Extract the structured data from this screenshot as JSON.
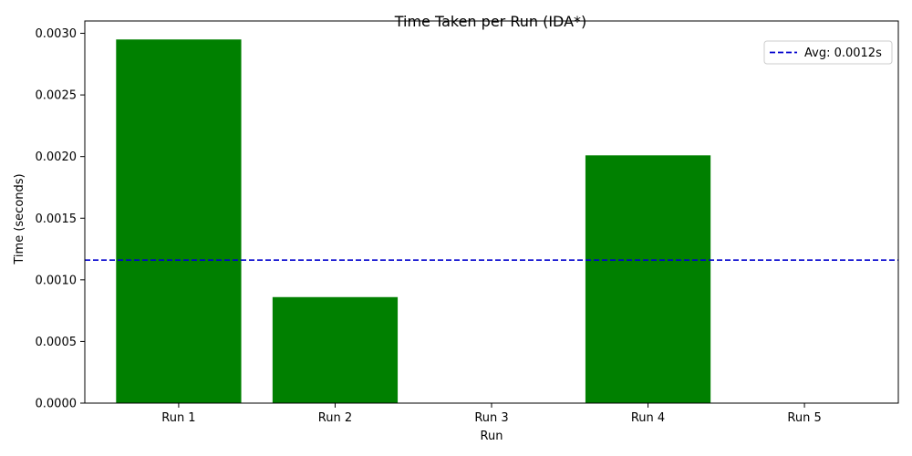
{
  "chart_data": {
    "type": "bar",
    "title": "Time Taken per Run (IDA*)",
    "xlabel": "Run",
    "ylabel": "Time (seconds)",
    "categories": [
      "Run 1",
      "Run 2",
      "Run 3",
      "Run 4",
      "Run 5"
    ],
    "values": [
      0.00295,
      0.00086,
      0.0,
      0.00201,
      0.0
    ],
    "ylim": [
      0,
      0.0031
    ],
    "yticks": [
      0.0,
      0.0005,
      0.001,
      0.0015,
      0.002,
      0.0025,
      0.003
    ],
    "ytick_labels": [
      "0.0000",
      "0.0005",
      "0.0010",
      "0.0015",
      "0.0020",
      "0.0025",
      "0.0030"
    ],
    "bar_color": "#008000",
    "average": {
      "value": 0.00116,
      "label": "Avg: 0.0012s",
      "color": "#0000cd",
      "style": "dashed"
    },
    "grid": false,
    "legend_position": "top-right"
  }
}
